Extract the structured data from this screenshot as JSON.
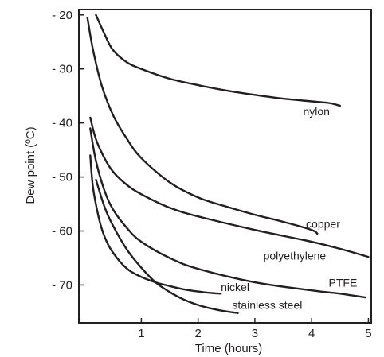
{
  "chart_data": {
    "type": "line",
    "title": "",
    "xlabel": "Time (hours)",
    "ylabel": "Dew point (ºC)",
    "xlim": [
      -0.1,
      5.05
    ],
    "ylim": [
      -77,
      -19
    ],
    "x_ticks": [
      1,
      2,
      3,
      4,
      5
    ],
    "x_tick_labels": [
      "1",
      "2",
      "3",
      "4",
      "5"
    ],
    "y_ticks": [
      -20,
      -30,
      -40,
      -50,
      -60,
      -70
    ],
    "y_tick_labels": [
      "- 20",
      "- 30",
      "- 40",
      "- 50",
      "- 60",
      "- 70"
    ],
    "grid": false,
    "legend": "none",
    "line_color": "#231f20",
    "series": [
      {
        "name": "nylon",
        "x": [
          0.2,
          0.35,
          0.5,
          0.75,
          1.0,
          1.5,
          2.0,
          2.5,
          3.0,
          3.5,
          4.0,
          4.3,
          4.5
        ],
        "y": [
          -20,
          -23.5,
          -26.5,
          -28.8,
          -30,
          -31.8,
          -33,
          -34,
          -34.8,
          -35.5,
          -36,
          -36.3,
          -36.8
        ]
      },
      {
        "name": "copper",
        "x": [
          0.05,
          0.15,
          0.3,
          0.5,
          0.75,
          1.0,
          1.5,
          2.0,
          2.5,
          3.0,
          3.5,
          4.0,
          4.1
        ],
        "y": [
          -20.5,
          -26.5,
          -33,
          -38.5,
          -43,
          -46.5,
          -51,
          -53.8,
          -55.5,
          -57,
          -58.3,
          -59.8,
          -60.5
        ]
      },
      {
        "name": "polyethylene",
        "x": [
          0.1,
          0.2,
          0.35,
          0.5,
          0.75,
          1.0,
          1.5,
          2.0,
          3.0,
          4.0,
          4.5,
          5.0
        ],
        "y": [
          -39,
          -43,
          -46.5,
          -49,
          -51.5,
          -53.2,
          -55.7,
          -57.3,
          -59.8,
          -62,
          -63.3,
          -64.8
        ]
      },
      {
        "name": "PTFE",
        "x": [
          0.1,
          0.2,
          0.35,
          0.5,
          0.75,
          1.0,
          1.5,
          2.0,
          3.0,
          4.0,
          4.5,
          4.95
        ],
        "y": [
          -41,
          -47,
          -52.5,
          -56,
          -59.5,
          -62,
          -65,
          -67,
          -69.5,
          -71,
          -71.6,
          -72.3
        ]
      },
      {
        "name": "nickel",
        "x": [
          0.1,
          0.15,
          0.25,
          0.35,
          0.5,
          0.75,
          1.0,
          1.25,
          1.5,
          1.75,
          2.0,
          2.25,
          2.4
        ],
        "y": [
          -46,
          -52,
          -57.5,
          -61,
          -64,
          -67,
          -68.5,
          -69.5,
          -70.2,
          -70.8,
          -71.2,
          -71.5,
          -71.6
        ]
      },
      {
        "name": "stainless steel",
        "x": [
          0.2,
          0.35,
          0.5,
          0.75,
          1.0,
          1.25,
          1.5,
          1.75,
          2.0,
          2.25,
          2.5,
          2.7
        ],
        "y": [
          -50.5,
          -55.5,
          -59,
          -63.5,
          -66.8,
          -69.5,
          -71.3,
          -72.7,
          -73.7,
          -74.4,
          -74.9,
          -75.2
        ]
      }
    ],
    "annotations": [
      {
        "text": "nylon",
        "x": 3.85,
        "y": -38.6
      },
      {
        "text": "copper",
        "x": 3.9,
        "y": -59.4
      },
      {
        "text": "polyethylene",
        "x": 3.15,
        "y": -65.3
      },
      {
        "text": "PTFE",
        "x": 4.3,
        "y": -70.3
      },
      {
        "text": "nickel",
        "x": 2.4,
        "y": -71.1
      },
      {
        "text": "stainless steel",
        "x": 2.6,
        "y": -74.4
      }
    ]
  }
}
